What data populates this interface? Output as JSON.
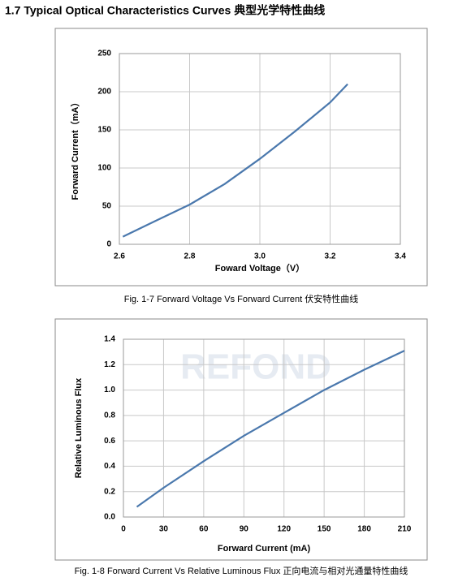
{
  "title": "1.7 Typical Optical Characteristics Curves 典型光学特性曲线",
  "watermark": "REFOND",
  "chart_data": [
    {
      "type": "line",
      "caption": "Fig. 1-7 Forward Voltage Vs Forward Current 伏安特性曲线",
      "x_label": "Foward Voltage（V）",
      "y_label": "Forward Current（mA）",
      "x": [
        2.61,
        2.7,
        2.8,
        2.9,
        3.0,
        3.1,
        3.2,
        3.25
      ],
      "values": [
        10,
        30,
        52,
        79,
        112,
        148,
        186,
        210
      ],
      "color": "#4a78ad",
      "xlim": [
        2.6,
        3.4
      ],
      "xticks": [
        2.6,
        2.8,
        {
          "value": 3.0,
          "label": "3.0"
        },
        3.2,
        3.4
      ],
      "ylim": [
        0,
        250
      ],
      "yticks": [
        0,
        50,
        100,
        150,
        200,
        250
      ],
      "grid": true
    },
    {
      "type": "line",
      "caption": "Fig. 1-8 Forward Current Vs Relative Luminous Flux 正向电流与相对光通量特性曲线",
      "x_label": "Forward Current (mA)",
      "y_label": "Relative Luminous Flux",
      "x": [
        10,
        30,
        60,
        90,
        120,
        150,
        180,
        210
      ],
      "values": [
        0.08,
        0.23,
        0.44,
        0.64,
        0.82,
        1.0,
        1.16,
        1.31
      ],
      "color": "#4a78ad",
      "xlim": [
        0,
        210
      ],
      "xticks": [
        0,
        30,
        60,
        90,
        120,
        150,
        180,
        210
      ],
      "ylim": [
        0,
        1.4
      ],
      "yticks": [
        {
          "value": 0,
          "label": "0.0"
        },
        0.2,
        0.4,
        0.6,
        0.8,
        {
          "value": 1,
          "label": "1.0"
        },
        1.2,
        1.4
      ],
      "grid": true
    }
  ]
}
